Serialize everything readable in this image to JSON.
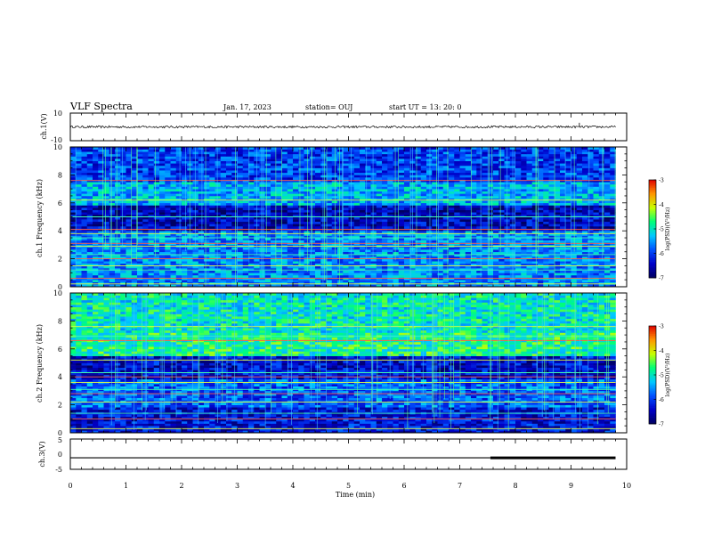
{
  "header": {
    "title": "VLF Spectra",
    "date": "Jan. 17, 2023",
    "station": "station= OUJ",
    "start_ut": "start  UT  =   13: 20: 0"
  },
  "chart_data": [
    {
      "type": "line",
      "panel": "ch1-voltage",
      "ylabel": "ch.1(V)",
      "ylim": [
        -10,
        10
      ],
      "yticks": [
        "10",
        "-10"
      ],
      "xlim": [
        0,
        10
      ],
      "series": [
        {
          "x": [
            0,
            9.8
          ],
          "y": [
            0,
            0
          ]
        }
      ],
      "spikes": [
        {
          "x": 9.15,
          "y": 3
        }
      ]
    },
    {
      "type": "heatmap",
      "panel": "ch1-spectrogram",
      "ylabel": "ch.1\nFrequency  (kHz)",
      "ylim": [
        0,
        10
      ],
      "yticks": [
        "0",
        "2",
        "4",
        "6",
        "8",
        "10"
      ],
      "xlim": [
        0,
        10
      ],
      "data_extent_min": [
        0,
        9.8
      ],
      "colorbar": {
        "label": "log(PSD)(V²/Hz)",
        "range": [
          -7,
          -3
        ],
        "ticks": [
          "-3",
          "-4",
          "-5",
          "-6",
          "-7"
        ]
      },
      "bands": [
        {
          "f_range": [
            0,
            4.0
          ],
          "level": -5.6
        },
        {
          "f_range": [
            4.0,
            5.8
          ],
          "level": -6.5
        },
        {
          "f_range": [
            5.8,
            7.5
          ],
          "level": -5.4
        },
        {
          "f_range": [
            7.5,
            10
          ],
          "level": -6.0
        }
      ],
      "tones_khz": [
        0.2,
        0.6,
        1.2,
        1.5,
        2.0,
        2.3,
        2.9,
        3.1,
        3.5,
        3.8,
        4.1,
        5.0,
        6.2,
        7.6
      ]
    },
    {
      "type": "heatmap",
      "panel": "ch2-spectrogram",
      "ylabel": "ch.2\nFrequency  (kHz)",
      "ylim": [
        0,
        10
      ],
      "yticks": [
        "0",
        "2",
        "4",
        "6",
        "8",
        "10"
      ],
      "xlim": [
        0,
        10
      ],
      "data_extent_min": [
        0,
        9.8
      ],
      "colorbar": {
        "label": "log(PSD)(V²/Hz)",
        "range": [
          -7,
          -3
        ],
        "ticks": [
          "-3",
          "-4",
          "-5",
          "-6",
          "-7"
        ]
      },
      "bands": [
        {
          "f_range": [
            0,
            1.8
          ],
          "level": -6.3
        },
        {
          "f_range": [
            1.8,
            3.8
          ],
          "level": -5.8
        },
        {
          "f_range": [
            3.8,
            5.5
          ],
          "level": -6.4
        },
        {
          "f_range": [
            5.5,
            7.2
          ],
          "level": -4.8
        },
        {
          "f_range": [
            7.2,
            10
          ],
          "level": -5.0
        }
      ],
      "tones_khz": [
        0.3,
        1.0,
        1.4,
        2.2,
        2.8,
        3.1,
        3.6,
        4.0,
        4.3,
        5.2,
        6.6,
        6.9,
        7.6
      ]
    },
    {
      "type": "line",
      "panel": "ch3-voltage",
      "ylabel": "ch.3(V)",
      "ylim": [
        -5,
        5
      ],
      "yticks": [
        "5",
        "0",
        "-5"
      ],
      "xlim": [
        0,
        10
      ],
      "xlabel": "Time  (min)",
      "xticks": [
        "0",
        "1",
        "2",
        "3",
        "4",
        "5",
        "6",
        "7",
        "8",
        "9",
        "10"
      ],
      "series": [
        {
          "x": [
            0,
            7.55
          ],
          "y": [
            -1.2,
            -1.2
          ],
          "weight": "thin"
        },
        {
          "x": [
            7.55,
            9.8
          ],
          "y": [
            -1.2,
            -1.2
          ],
          "weight": "thick"
        }
      ]
    }
  ],
  "colors": {
    "colormap": [
      "#000060",
      "#0000c8",
      "#0050ff",
      "#00c8ff",
      "#00ff78",
      "#c8ff00",
      "#ff9600",
      "#e00000",
      "#ffffff"
    ]
  }
}
